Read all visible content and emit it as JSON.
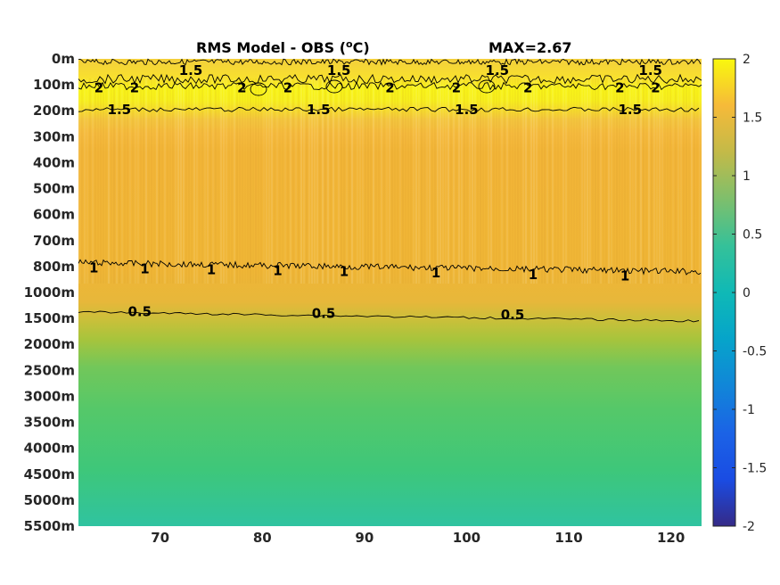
{
  "chart_data": {
    "type": "heatmap",
    "title": "RMS Model - OBS (",
    "title_unit": "o",
    "title_unit_tail": "C)",
    "max_label": "MAX=2.67",
    "x_ticks": [
      "70",
      "80",
      "90",
      "100",
      "110",
      "120"
    ],
    "x_tick_values": [
      70,
      80,
      90,
      100,
      110,
      120
    ],
    "xlim": [
      62,
      123
    ],
    "y_ticks": [
      "0m",
      "100m",
      "200m",
      "300m",
      "400m",
      "500m",
      "600m",
      "700m",
      "800m",
      "1000m",
      "1500m",
      "2000m",
      "2500m",
      "3000m",
      "3500m",
      "4000m",
      "4500m",
      "5000m",
      "5500m"
    ],
    "colorbar": {
      "ticks": [
        "2",
        "1.5",
        "1",
        "0.5",
        "0",
        "-0.5",
        "-1",
        "-1.5",
        "-2"
      ],
      "tick_values": [
        2,
        1.5,
        1,
        0.5,
        0,
        -0.5,
        -1,
        -1.5,
        -2
      ],
      "range": [
        -2,
        2
      ],
      "colormap": "parula"
    },
    "depth_profile": [
      {
        "depth": "0m",
        "value": 1.5
      },
      {
        "depth": "100m",
        "value": 2.0
      },
      {
        "depth": "200m",
        "value": 1.5
      },
      {
        "depth": "300m",
        "value": 1.3
      },
      {
        "depth": "400m",
        "value": 1.25
      },
      {
        "depth": "500m",
        "value": 1.25
      },
      {
        "depth": "600m",
        "value": 1.25
      },
      {
        "depth": "700m",
        "value": 1.2
      },
      {
        "depth": "800m",
        "value": 1.0
      },
      {
        "depth": "1000m",
        "value": 0.75
      },
      {
        "depth": "1500m",
        "value": 0.5
      },
      {
        "depth": "2000m",
        "value": 0.42
      },
      {
        "depth": "2500m",
        "value": 0.38
      },
      {
        "depth": "3000m",
        "value": 0.36
      },
      {
        "depth": "3500m",
        "value": 0.34
      },
      {
        "depth": "4000m",
        "value": 0.32
      },
      {
        "depth": "4500m",
        "value": 0.3
      },
      {
        "depth": "5000m",
        "value": 0.28
      },
      {
        "depth": "5500m",
        "value": 0.26
      }
    ],
    "contours": [
      {
        "level": "1.5",
        "labels_x": [
          73,
          87.5,
          103,
          118
        ]
      },
      {
        "level": "2",
        "labels_x": [
          64,
          67.5,
          78,
          82.5,
          92.5,
          99,
          106,
          115,
          118.5
        ]
      },
      {
        "level": "1.5",
        "labels_x": [
          66,
          85.5,
          100,
          116
        ]
      },
      {
        "level": "1",
        "labels_x": [
          63.5,
          68.5,
          75,
          81.5,
          88,
          97,
          106.5,
          115.5
        ]
      },
      {
        "level": "0.5",
        "labels_x": [
          68,
          86,
          104.5
        ]
      }
    ]
  }
}
